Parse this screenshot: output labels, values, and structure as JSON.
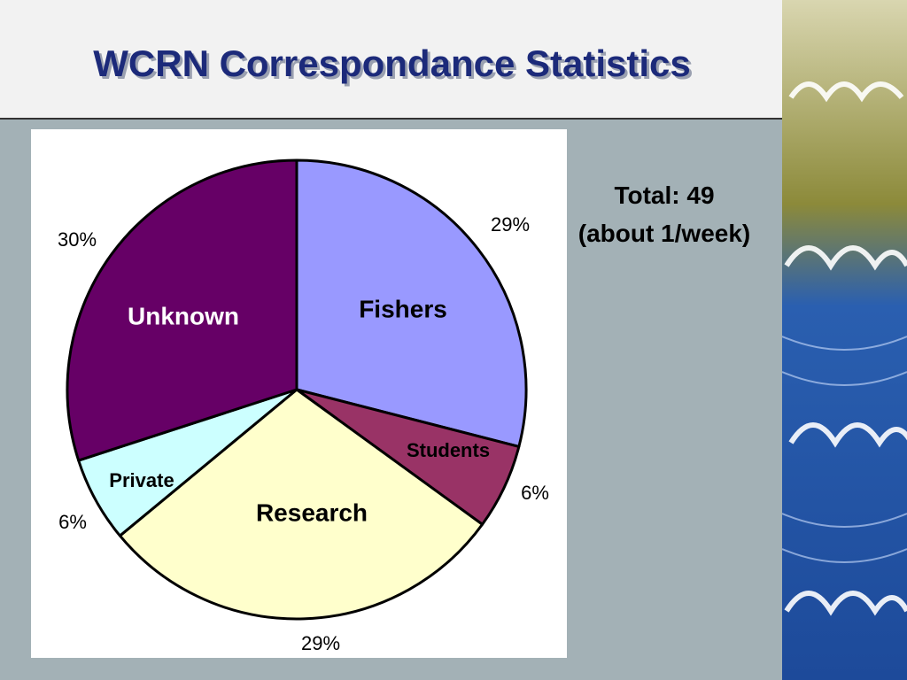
{
  "chart_data": {
    "type": "pie",
    "title": "WCRN Correspondance Statistics",
    "categories": [
      "Fishers",
      "Students",
      "Research",
      "Private",
      "Unknown"
    ],
    "values": [
      29,
      6,
      29,
      6,
      30
    ],
    "value_labels": [
      "29%",
      "6%",
      "29%",
      "6%",
      "30%"
    ],
    "colors": [
      "#9999ff",
      "#993366",
      "#ffffcc",
      "#ccffff",
      "#660066"
    ],
    "annotations": [
      "Total: 49",
      "(about 1/week)"
    ]
  }
}
